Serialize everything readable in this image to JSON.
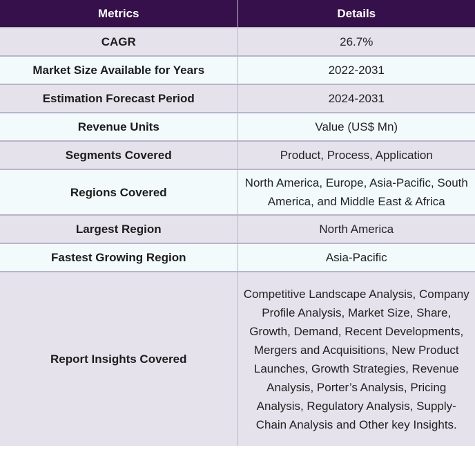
{
  "header": {
    "col1": "Metrics",
    "col2": "Details"
  },
  "rows": [
    {
      "metric": "CAGR",
      "details": "26.7%"
    },
    {
      "metric": "Market Size Available for Years",
      "details": "2022-2031"
    },
    {
      "metric": "Estimation Forecast Period",
      "details": "2024-2031"
    },
    {
      "metric": "Revenue Units",
      "details": "Value (US$ Mn)"
    },
    {
      "metric": "Segments Covered",
      "details": "Product, Process, Application"
    },
    {
      "metric": "Regions Covered",
      "details": "North America, Europe, Asia-Pacific, South America, and Middle East & Africa"
    },
    {
      "metric": "Largest Region",
      "details": "North America"
    },
    {
      "metric": "Fastest Growing Region",
      "details": "Asia-Pacific"
    },
    {
      "metric": "Report Insights Covered",
      "details": "Competitive Landscape Analysis, Company Profile Analysis, Market Size, Share, Growth, Demand, Recent Developments, Mergers and Acquisitions, New Product Launches, Growth Strategies, Revenue Analysis, Porter’s Analysis, Pricing Analysis, Regulatory Analysis, Supply-Chain Analysis and Other key Insights."
    }
  ]
}
